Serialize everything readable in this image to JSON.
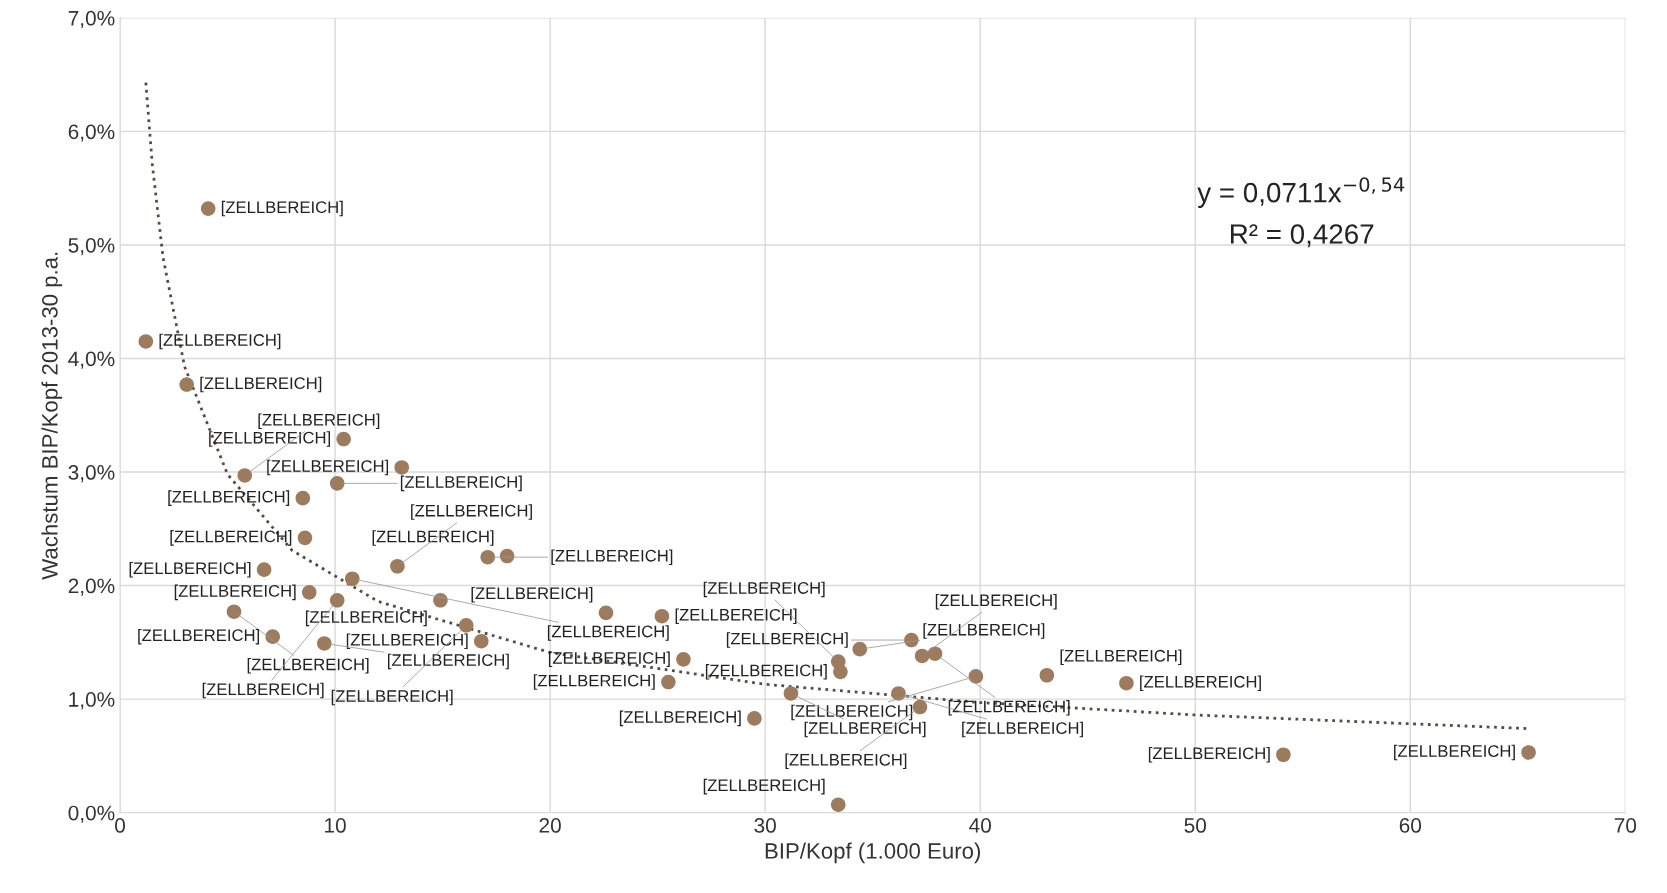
{
  "chart_data": {
    "type": "scatter",
    "xlabel": "BIP/Kopf (1.000 Euro)",
    "ylabel": "Wachstum BIP/Kopf 2013-30 p.a.",
    "xlim": [
      0,
      70
    ],
    "xticks": [
      0,
      10,
      20,
      30,
      40,
      50,
      60,
      70
    ],
    "ylim": [
      0,
      7
    ],
    "yticks": [
      {
        "value": 0,
        "label": "0,0%"
      },
      {
        "value": 1,
        "label": "1,0%"
      },
      {
        "value": 2,
        "label": "2,0%"
      },
      {
        "value": 3,
        "label": "3,0%"
      },
      {
        "value": 4,
        "label": "4,0%"
      },
      {
        "value": 5,
        "label": "5,0%"
      },
      {
        "value": 6,
        "label": "6,0%"
      },
      {
        "value": 7,
        "label": "7,0%"
      }
    ],
    "grid": true,
    "legend": false,
    "annotations": [
      "y = 0,0711x$^{−0,54}$",
      "R² = 0,4267"
    ],
    "series": [
      {
        "color": "#9c7b5e",
        "marker": "circle",
        "x": [
          4.1,
          1.2,
          3.1,
          10.4,
          13.1,
          5.8,
          10.1,
          8.5,
          8.6,
          17.1,
          18.0,
          6.7,
          12.9,
          10.8,
          8.8,
          10.1,
          14.9,
          5.3,
          22.6,
          25.2,
          7.1,
          9.5,
          16.1,
          16.8,
          26.2,
          25.5,
          31.2,
          29.5,
          33.4,
          33.5,
          34.4,
          36.8,
          37.3,
          37.9,
          36.2,
          37.2,
          39.8,
          43.1,
          46.8,
          54.1,
          65.5,
          33.4
        ],
        "values": [
          5.32,
          4.15,
          3.77,
          3.29,
          3.04,
          2.97,
          2.9,
          2.77,
          2.42,
          2.25,
          2.26,
          2.14,
          2.17,
          2.06,
          1.94,
          1.87,
          1.87,
          1.77,
          1.76,
          1.73,
          1.55,
          1.49,
          1.65,
          1.51,
          1.35,
          1.15,
          1.05,
          0.83,
          1.33,
          1.24,
          1.44,
          1.52,
          1.38,
          1.4,
          1.05,
          0.93,
          1.2,
          1.21,
          1.14,
          0.51,
          0.53,
          0.07
        ],
        "value_labels": [
          "[ZELLBEREICH]",
          "[ZELLBEREICH]",
          "[ZELLBEREICH]",
          "[ZELLBEREICH]",
          "[ZELLBEREICH]",
          "[ZELLBEREICH]",
          "[ZELLBEREICH]",
          "[ZELLBEREICH]",
          "[ZELLBEREICH]",
          "[ZELLBEREICH]",
          "[ZELLBEREICH]",
          "[ZELLBEREICH]",
          "[ZELLBEREICH]",
          "[ZELLBEREICH]",
          "[ZELLBEREICH]",
          "[ZELLBEREICH]",
          "[ZELLBEREICH]",
          "[ZELLBEREICH]",
          "[ZELLBEREICH]",
          "[ZELLBEREICH]",
          "[ZELLBEREICH]",
          "[ZELLBEREICH]",
          "[ZELLBEREICH]",
          "[ZELLBEREICH]",
          "[ZELLBEREICH]",
          "[ZELLBEREICH]",
          "[ZELLBEREICH]",
          "[ZELLBEREICH]",
          "[ZELLBEREICH]",
          "[ZELLBEREICH]",
          "[ZELLBEREICH]",
          "[ZELLBEREICH]",
          "[ZELLBEREICH]",
          "[ZELLBEREICH]",
          "[ZELLBEREICH]",
          "[ZELLBEREICH]",
          "[ZELLBEREICH]",
          "[ZELLBEREICH]",
          "[ZELLBEREICH]",
          "[ZELLBEREICH]",
          "[ZELLBEREICH]",
          "[ZELLBEREICH]"
        ]
      },
      {
        "type": "line",
        "color": "#5a4a3f",
        "marker": "none",
        "line_style": "dotted",
        "x": [
          1.2,
          1.5,
          2,
          3,
          5,
          8,
          12,
          20,
          30,
          40,
          50,
          65.5
        ],
        "values": [
          6.43,
          5.71,
          4.89,
          3.93,
          2.98,
          2.31,
          1.86,
          1.41,
          1.13,
          0.97,
          0.86,
          0.74
        ]
      }
    ]
  }
}
